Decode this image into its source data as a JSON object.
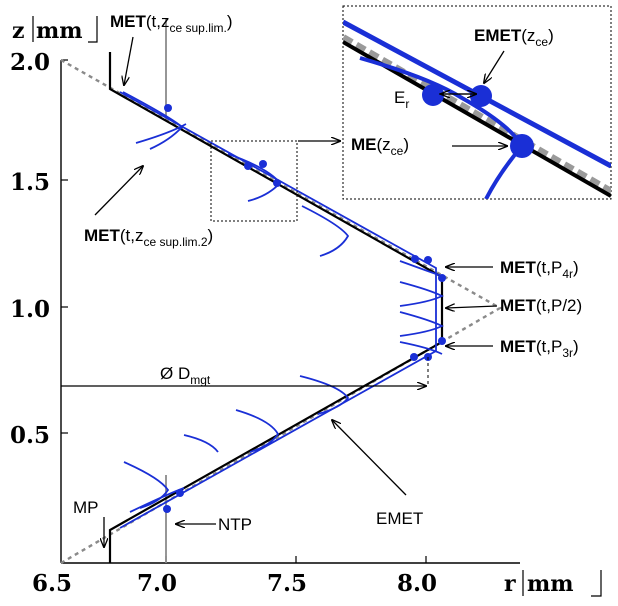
{
  "axes": {
    "y_label": "z",
    "y_unit": "mm",
    "x_label": "r",
    "x_unit": "mm",
    "x_ticks": [
      "6.5",
      "7.0",
      "7.5",
      "8.0"
    ],
    "y_ticks": [
      "0.5",
      "1.0",
      "1.5",
      "2.0"
    ]
  },
  "labels": {
    "met_sup": {
      "main": "MET",
      "open": "(t,z",
      "sub": "ce sup.lim.",
      "close": ")"
    },
    "met_sup2": {
      "main": "MET",
      "open": "(t,z",
      "sub": "ce sup.lim.2",
      "close": ")"
    },
    "met_p4r": {
      "main": "MET",
      "open": "(t,P",
      "sub": "4r",
      "close": ")"
    },
    "met_p2": {
      "main": "MET",
      "rest": "(t,P/2)"
    },
    "met_p3r": {
      "main": "MET",
      "open": "(t,P",
      "sub": "3r",
      "close": ")"
    },
    "diameter": {
      "symbol": "Ø D",
      "sub": "mgt"
    },
    "mp": "MP",
    "ntp": "NTP",
    "emet": "EMET",
    "inset": {
      "emet": {
        "main": "EMET",
        "open": "(z",
        "sub": "ce",
        "close": ")"
      },
      "me": {
        "main": "ME",
        "open": "(z",
        "sub": "ce",
        "close": ")"
      },
      "er": {
        "main": "E",
        "sub": "r"
      }
    }
  }
}
